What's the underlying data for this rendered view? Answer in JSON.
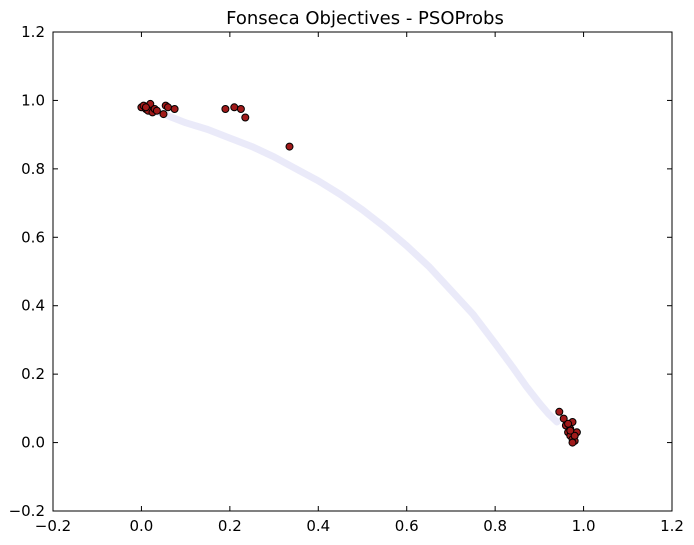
{
  "chart_data": {
    "type": "scatter",
    "title": "Fonseca Objectives - PSOProbs",
    "xlabel": "",
    "ylabel": "",
    "xlim": [
      -0.2,
      1.2
    ],
    "ylim": [
      -0.2,
      1.2
    ],
    "xticks": [
      "−0.2",
      "0.0",
      "0.2",
      "0.4",
      "0.6",
      "0.8",
      "1.0",
      "1.2"
    ],
    "yticks": [
      "−0.2",
      "0.0",
      "0.2",
      "0.4",
      "0.6",
      "0.8",
      "1.0",
      "1.2"
    ],
    "xtick_values": [
      -0.2,
      0.0,
      0.2,
      0.4,
      0.6,
      0.8,
      1.0,
      1.2
    ],
    "ytick_values": [
      -0.2,
      0.0,
      0.2,
      0.4,
      0.6,
      0.8,
      1.0,
      1.2
    ],
    "grid": false,
    "legend": "none",
    "colors": {
      "points_fill": "#a01a1a",
      "points_edge": "#000000",
      "front": "#e8e8f8"
    },
    "pareto_front": {
      "x": [
        0.02,
        0.06,
        0.1,
        0.15,
        0.2,
        0.25,
        0.3,
        0.35,
        0.4,
        0.45,
        0.5,
        0.55,
        0.6,
        0.65,
        0.7,
        0.75,
        0.8,
        0.84,
        0.87,
        0.9,
        0.92,
        0.94
      ],
      "y": [
        0.975,
        0.955,
        0.935,
        0.915,
        0.89,
        0.865,
        0.835,
        0.8,
        0.765,
        0.725,
        0.68,
        0.63,
        0.575,
        0.515,
        0.445,
        0.375,
        0.29,
        0.22,
        0.165,
        0.115,
        0.085,
        0.06
      ]
    },
    "series": [
      {
        "x": [
          0.0,
          0.005,
          0.01,
          0.015,
          0.02,
          0.025,
          0.01,
          0.03,
          0.035,
          0.055,
          0.06,
          0.075,
          0.05,
          0.19,
          0.21,
          0.225,
          0.235,
          0.335,
          0.945,
          0.955,
          0.96,
          0.965,
          0.97,
          0.975,
          0.98,
          0.985,
          0.97,
          0.975,
          0.98,
          0.975,
          0.965,
          0.97
        ],
        "y": [
          0.98,
          0.985,
          0.975,
          0.97,
          0.99,
          0.965,
          0.98,
          0.975,
          0.97,
          0.985,
          0.98,
          0.975,
          0.96,
          0.975,
          0.98,
          0.975,
          0.95,
          0.865,
          0.09,
          0.07,
          0.05,
          0.03,
          0.02,
          0.01,
          0.005,
          0.03,
          0.04,
          0.06,
          0.02,
          0.0,
          0.055,
          0.035
        ]
      }
    ]
  }
}
